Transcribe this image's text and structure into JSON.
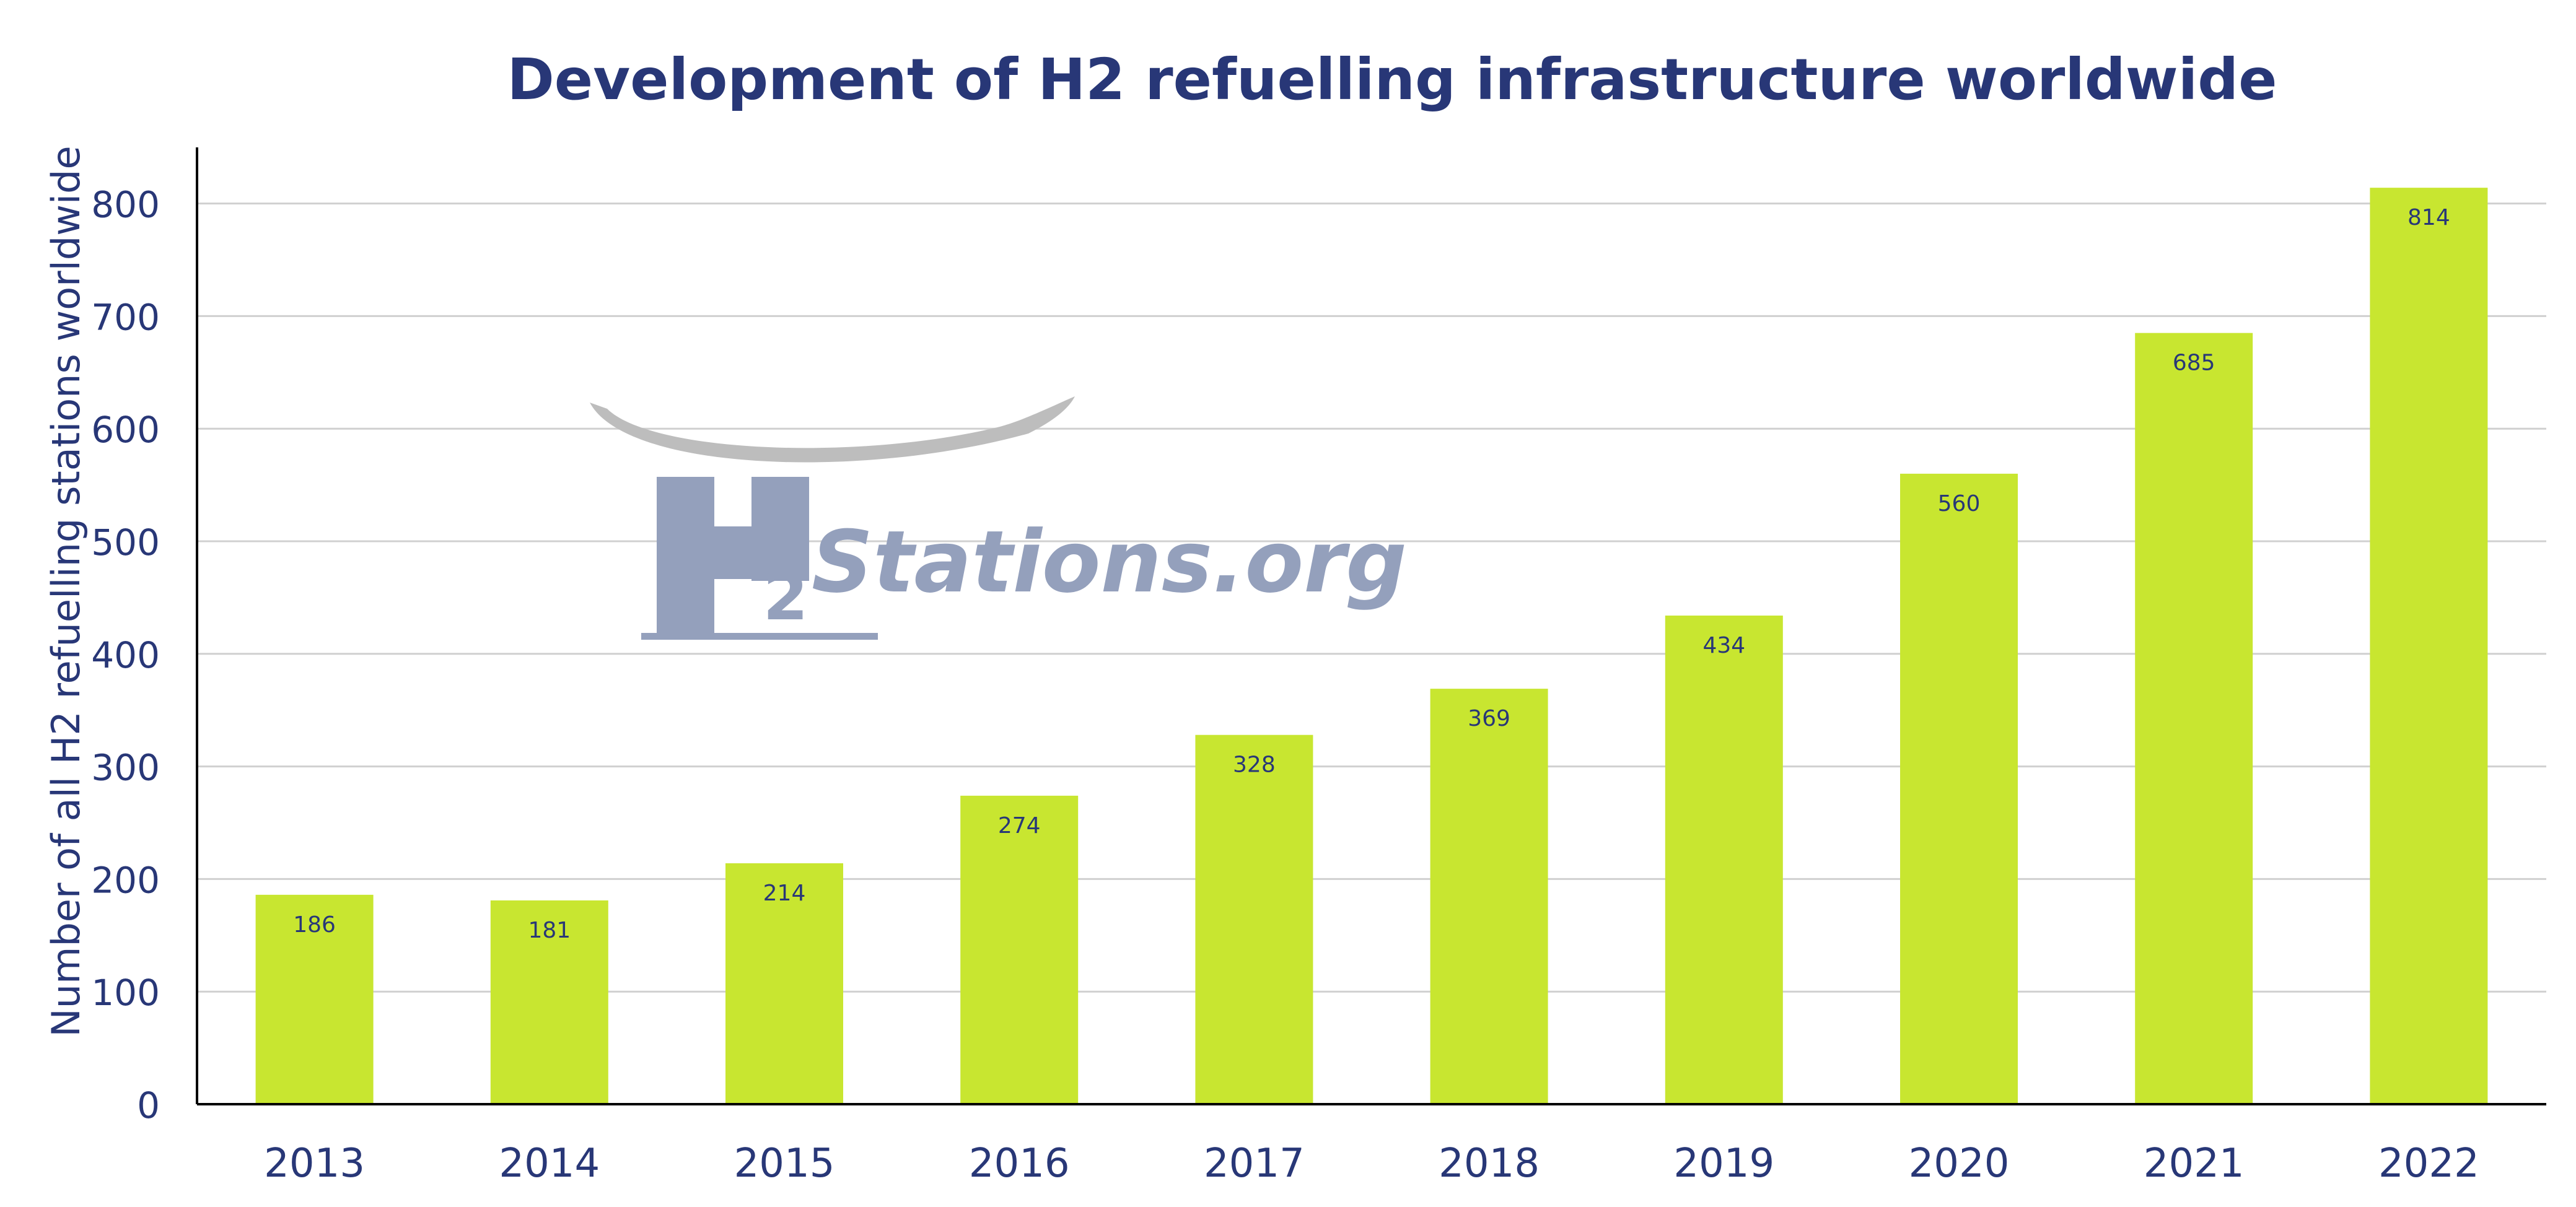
{
  "colors": {
    "title": "#283777",
    "bar": "#c8e630",
    "axis_text": "#283777",
    "gridline": "#d0d0d0",
    "axis_line": "#000000",
    "logo": "#94a0bc",
    "logo_swoosh": "#bdbdbd",
    "data_label": "#283777"
  },
  "logo": {
    "letter": "H",
    "subscript": "2",
    "text": "Stations.org"
  },
  "chart_data": {
    "type": "bar",
    "title": "Development of H2 refuelling infrastructure worldwide",
    "xlabel": "",
    "ylabel": "Number of all H2 refuelling stations worldwide",
    "categories": [
      "2013",
      "2014",
      "2015",
      "2016",
      "2017",
      "2018",
      "2019",
      "2020",
      "2021",
      "2022"
    ],
    "values": [
      186,
      181,
      214,
      274,
      328,
      369,
      434,
      560,
      685,
      814
    ],
    "data_labels": [
      "186",
      "181",
      "214",
      "274",
      "328",
      "369",
      "434",
      "560",
      "685",
      "814"
    ],
    "ylim": [
      0,
      850
    ],
    "yticks": [
      0,
      100,
      200,
      300,
      400,
      500,
      600,
      700,
      800
    ],
    "ytick_labels": [
      "0",
      "100",
      "200",
      "300",
      "400",
      "500",
      "600",
      "700",
      "800"
    ],
    "grid": true,
    "legend": "none"
  }
}
